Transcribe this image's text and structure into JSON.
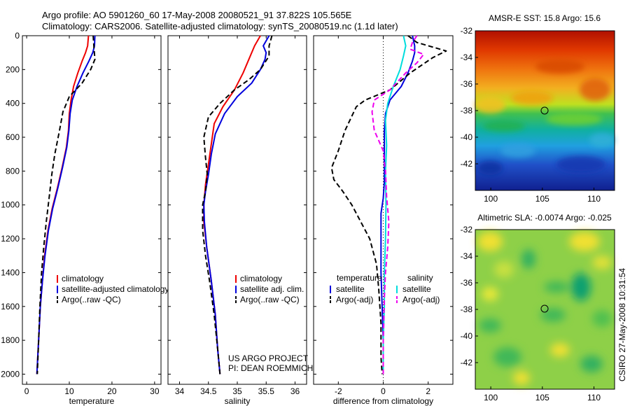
{
  "header": {
    "line1": "Argo profile: AO 5901260_60 17-May-2008 20080521_91 37.822S 105.565E",
    "line2": "Climatology: CARS2006. Satellite-adjusted climatology: synTS_20080519.nc (1.1d later)"
  },
  "chart_data": [
    {
      "type": "line",
      "xlabel": "temperature",
      "ylabel": "",
      "xlim": [
        -1,
        31.5
      ],
      "ylim": [
        2060,
        0
      ],
      "xticks": [
        0,
        10,
        20,
        30
      ],
      "yticks": [
        0,
        200,
        400,
        600,
        800,
        1000,
        1200,
        1400,
        1600,
        1800,
        2000
      ],
      "legend": "lower-right",
      "series": [
        {
          "name": "climatology",
          "color": "#ee0000",
          "dash": "",
          "points": [
            [
              14.5,
              0
            ],
            [
              14.3,
              60
            ],
            [
              13.8,
              100
            ],
            [
              13.0,
              150
            ],
            [
              12.0,
              220
            ],
            [
              11.0,
              300
            ],
            [
              10.4,
              380
            ],
            [
              10.0,
              460
            ],
            [
              9.8,
              560
            ],
            [
              9.3,
              660
            ],
            [
              8.3,
              780
            ],
            [
              7.2,
              900
            ],
            [
              6.0,
              1020
            ],
            [
              5.0,
              1150
            ],
            [
              4.2,
              1300
            ],
            [
              3.7,
              1450
            ],
            [
              3.2,
              1600
            ],
            [
              2.9,
              1750
            ],
            [
              2.6,
              1900
            ],
            [
              2.4,
              2000
            ]
          ]
        },
        {
          "name": "satellite-adjusted climatology",
          "color": "#0000dd",
          "dash": "",
          "points": [
            [
              16.0,
              0
            ],
            [
              15.9,
              60
            ],
            [
              15.5,
              100
            ],
            [
              14.6,
              150
            ],
            [
              13.2,
              220
            ],
            [
              11.8,
              300
            ],
            [
              10.7,
              380
            ],
            [
              10.2,
              460
            ],
            [
              9.9,
              560
            ],
            [
              9.4,
              660
            ],
            [
              8.4,
              780
            ],
            [
              7.3,
              900
            ],
            [
              6.1,
              1020
            ],
            [
              5.1,
              1150
            ],
            [
              4.3,
              1300
            ],
            [
              3.7,
              1450
            ],
            [
              3.2,
              1600
            ],
            [
              2.9,
              1750
            ],
            [
              2.6,
              1900
            ],
            [
              2.4,
              2000
            ]
          ]
        },
        {
          "name": "Argo(..raw -QC)",
          "color": "#000000",
          "dash": "7,4",
          "points": [
            [
              15.6,
              0
            ],
            [
              15.8,
              80
            ],
            [
              16.0,
              140
            ],
            [
              15.0,
              200
            ],
            [
              13.0,
              280
            ],
            [
              10.0,
              360
            ],
            [
              8.5,
              450
            ],
            [
              7.7,
              560
            ],
            [
              6.6,
              700
            ],
            [
              5.9,
              820
            ],
            [
              5.3,
              950
            ],
            [
              4.6,
              1100
            ],
            [
              4.0,
              1250
            ],
            [
              3.5,
              1400
            ],
            [
              3.1,
              1600
            ],
            [
              2.8,
              1800
            ],
            [
              2.5,
              2000
            ]
          ]
        }
      ]
    },
    {
      "type": "line",
      "xlabel": "salinity",
      "ylabel": "",
      "xlim": [
        33.8,
        36.2
      ],
      "ylim": [
        2060,
        0
      ],
      "xticks": [
        34,
        34.5,
        35,
        35.5,
        36
      ],
      "xticklabels": [
        "34",
        "34.5",
        "35",
        "35.5",
        "36"
      ],
      "legend": "lower-right",
      "series": [
        {
          "name": "climatology",
          "color": "#ee0000",
          "dash": "",
          "points": [
            [
              35.4,
              0
            ],
            [
              35.3,
              60
            ],
            [
              35.2,
              140
            ],
            [
              35.1,
              220
            ],
            [
              34.95,
              320
            ],
            [
              34.75,
              420
            ],
            [
              34.6,
              520
            ],
            [
              34.55,
              640
            ],
            [
              34.5,
              760
            ],
            [
              34.45,
              880
            ],
            [
              34.42,
              1000
            ],
            [
              34.42,
              1100
            ],
            [
              34.47,
              1250
            ],
            [
              34.55,
              1450
            ],
            [
              34.62,
              1650
            ],
            [
              34.66,
              1850
            ],
            [
              34.7,
              2000
            ]
          ]
        },
        {
          "name": "satellite adj. clim.",
          "color": "#0000dd",
          "dash": "",
          "points": [
            [
              35.55,
              0
            ],
            [
              35.45,
              60
            ],
            [
              35.5,
              100
            ],
            [
              35.48,
              140
            ],
            [
              35.4,
              200
            ],
            [
              35.25,
              280
            ],
            [
              35.0,
              360
            ],
            [
              34.78,
              460
            ],
            [
              34.62,
              580
            ],
            [
              34.55,
              700
            ],
            [
              34.5,
              820
            ],
            [
              34.45,
              920
            ],
            [
              34.42,
              1000
            ],
            [
              34.43,
              1100
            ],
            [
              34.47,
              1250
            ],
            [
              34.55,
              1450
            ],
            [
              34.62,
              1650
            ],
            [
              34.66,
              1850
            ],
            [
              34.7,
              2000
            ]
          ]
        },
        {
          "name": "Argo(..raw -QC)",
          "color": "#000000",
          "dash": "7,4",
          "points": [
            [
              35.6,
              0
            ],
            [
              35.55,
              60
            ],
            [
              35.55,
              120
            ],
            [
              35.4,
              200
            ],
            [
              35.2,
              260
            ],
            [
              34.95,
              320
            ],
            [
              34.7,
              400
            ],
            [
              34.5,
              480
            ],
            [
              34.42,
              600
            ],
            [
              34.45,
              720
            ],
            [
              34.48,
              820
            ],
            [
              34.45,
              920
            ],
            [
              34.4,
              1000
            ],
            [
              34.4,
              1150
            ],
            [
              34.45,
              1300
            ],
            [
              34.52,
              1450
            ],
            [
              34.6,
              1650
            ],
            [
              34.66,
              1850
            ],
            [
              34.7,
              2000
            ]
          ]
        }
      ]
    },
    {
      "type": "line",
      "xlabel": "difference from climatology",
      "ylabel": "",
      "xlim": [
        -3.1,
        3.1
      ],
      "ylim": [
        2060,
        0
      ],
      "xticks": [
        -2,
        0,
        2
      ],
      "zero_line": true,
      "legend": "lower-left and lower-right",
      "legend_groups": [
        {
          "title": "temperature",
          "items": [
            {
              "name": "satellite",
              "color": "#0000dd",
              "dash": ""
            },
            {
              "name": "Argo(-adj)",
              "color": "#000000",
              "dash": "7,4"
            }
          ]
        },
        {
          "title": "salinity",
          "items": [
            {
              "name": "satellite",
              "color": "#00dddd",
              "dash": ""
            },
            {
              "name": "Argo(-adj)",
              "color": "#ee00ee",
              "dash": "7,4"
            }
          ]
        }
      ],
      "series": [
        {
          "name": "temperature satellite",
          "color": "#0000dd",
          "dash": "",
          "points": [
            [
              1.3,
              0
            ],
            [
              1.4,
              60
            ],
            [
              1.4,
              100
            ],
            [
              1.3,
              150
            ],
            [
              1.1,
              220
            ],
            [
              0.8,
              300
            ],
            [
              0.3,
              380
            ],
            [
              0.1,
              460
            ],
            [
              0.05,
              560
            ],
            [
              0.05,
              660
            ],
            [
              0.05,
              760
            ],
            [
              0.05,
              860
            ],
            [
              0.0,
              960
            ],
            [
              -0.1,
              1050
            ],
            [
              -0.1,
              1200
            ],
            [
              -0.1,
              1400
            ],
            [
              -0.05,
              1600
            ],
            [
              0.0,
              1800
            ],
            [
              0.0,
              2000
            ]
          ]
        },
        {
          "name": "temperature Argo(-adj)",
          "color": "#000000",
          "dash": "7,4",
          "points": [
            [
              1.1,
              0
            ],
            [
              1.5,
              40
            ],
            [
              2.8,
              90
            ],
            [
              2.2,
              130
            ],
            [
              1.2,
              220
            ],
            [
              0.3,
              320
            ],
            [
              -0.8,
              380
            ],
            [
              -1.2,
              420
            ],
            [
              -1.7,
              560
            ],
            [
              -2.0,
              680
            ],
            [
              -2.3,
              780
            ],
            [
              -2.2,
              850
            ],
            [
              -1.8,
              920
            ],
            [
              -1.4,
              1000
            ],
            [
              -1.0,
              1100
            ],
            [
              -0.6,
              1200
            ],
            [
              -0.3,
              1350
            ],
            [
              -0.2,
              1500
            ],
            [
              -0.1,
              1700
            ],
            [
              -0.1,
              1900
            ],
            [
              -0.05,
              2000
            ]
          ]
        },
        {
          "name": "salinity satellite",
          "color": "#00dddd",
          "dash": "",
          "points": [
            [
              0.9,
              0
            ],
            [
              1.0,
              60
            ],
            [
              0.9,
              120
            ],
            [
              0.75,
              200
            ],
            [
              0.45,
              300
            ],
            [
              0.2,
              400
            ],
            [
              0.1,
              500
            ],
            [
              0.15,
              650
            ],
            [
              0.1,
              800
            ],
            [
              0.12,
              1000
            ],
            [
              0.1,
              1200
            ],
            [
              0.05,
              1400
            ],
            [
              0.05,
              1600
            ],
            [
              0.0,
              1800
            ],
            [
              0.0,
              2000
            ]
          ]
        },
        {
          "name": "salinity Argo(-adj)",
          "color": "#ee00ee",
          "dash": "7,4",
          "points": [
            [
              1.5,
              0
            ],
            [
              1.3,
              40
            ],
            [
              1.2,
              80
            ],
            [
              1.8,
              110
            ],
            [
              1.5,
              160
            ],
            [
              1.0,
              220
            ],
            [
              0.3,
              320
            ],
            [
              -0.4,
              380
            ],
            [
              -0.5,
              450
            ],
            [
              -0.4,
              560
            ],
            [
              0.0,
              680
            ],
            [
              0.1,
              800
            ],
            [
              0.15,
              950
            ],
            [
              0.25,
              1100
            ],
            [
              0.2,
              1250
            ],
            [
              0.1,
              1400
            ],
            [
              0.05,
              1550
            ],
            [
              0.0,
              1800
            ],
            [
              0.0,
              2000
            ]
          ]
        }
      ]
    },
    {
      "type": "heatmap",
      "title": "AMSR-E SST: 15.8 Argo: 15.6",
      "xlim": [
        98.5,
        112
      ],
      "ylim": [
        -44,
        -32
      ],
      "xticks": [
        100,
        105,
        110
      ],
      "yticks": [
        -32,
        -34,
        -36,
        -38,
        -40,
        -42
      ],
      "marker": {
        "x": 105.565,
        "y": -37.822,
        "shape": "circle"
      },
      "colormap": "jet"
    },
    {
      "type": "heatmap",
      "title": "Altimetric SLA: -0.0074 Argo: -0.025",
      "xlim": [
        98.5,
        112
      ],
      "ylim": [
        -44,
        -32
      ],
      "xticks": [
        100,
        105,
        110
      ],
      "yticks": [
        -32,
        -34,
        -36,
        -38,
        -40,
        -42
      ],
      "marker": {
        "x": 105.565,
        "y": -37.822,
        "shape": "circle"
      },
      "colormap": "jet"
    }
  ],
  "annotations": {
    "project": "US ARGO PROJECT",
    "pi": "PI: DEAN ROEMMICH",
    "stamp": "CSIRO 27-May-2008 10:31:54"
  }
}
